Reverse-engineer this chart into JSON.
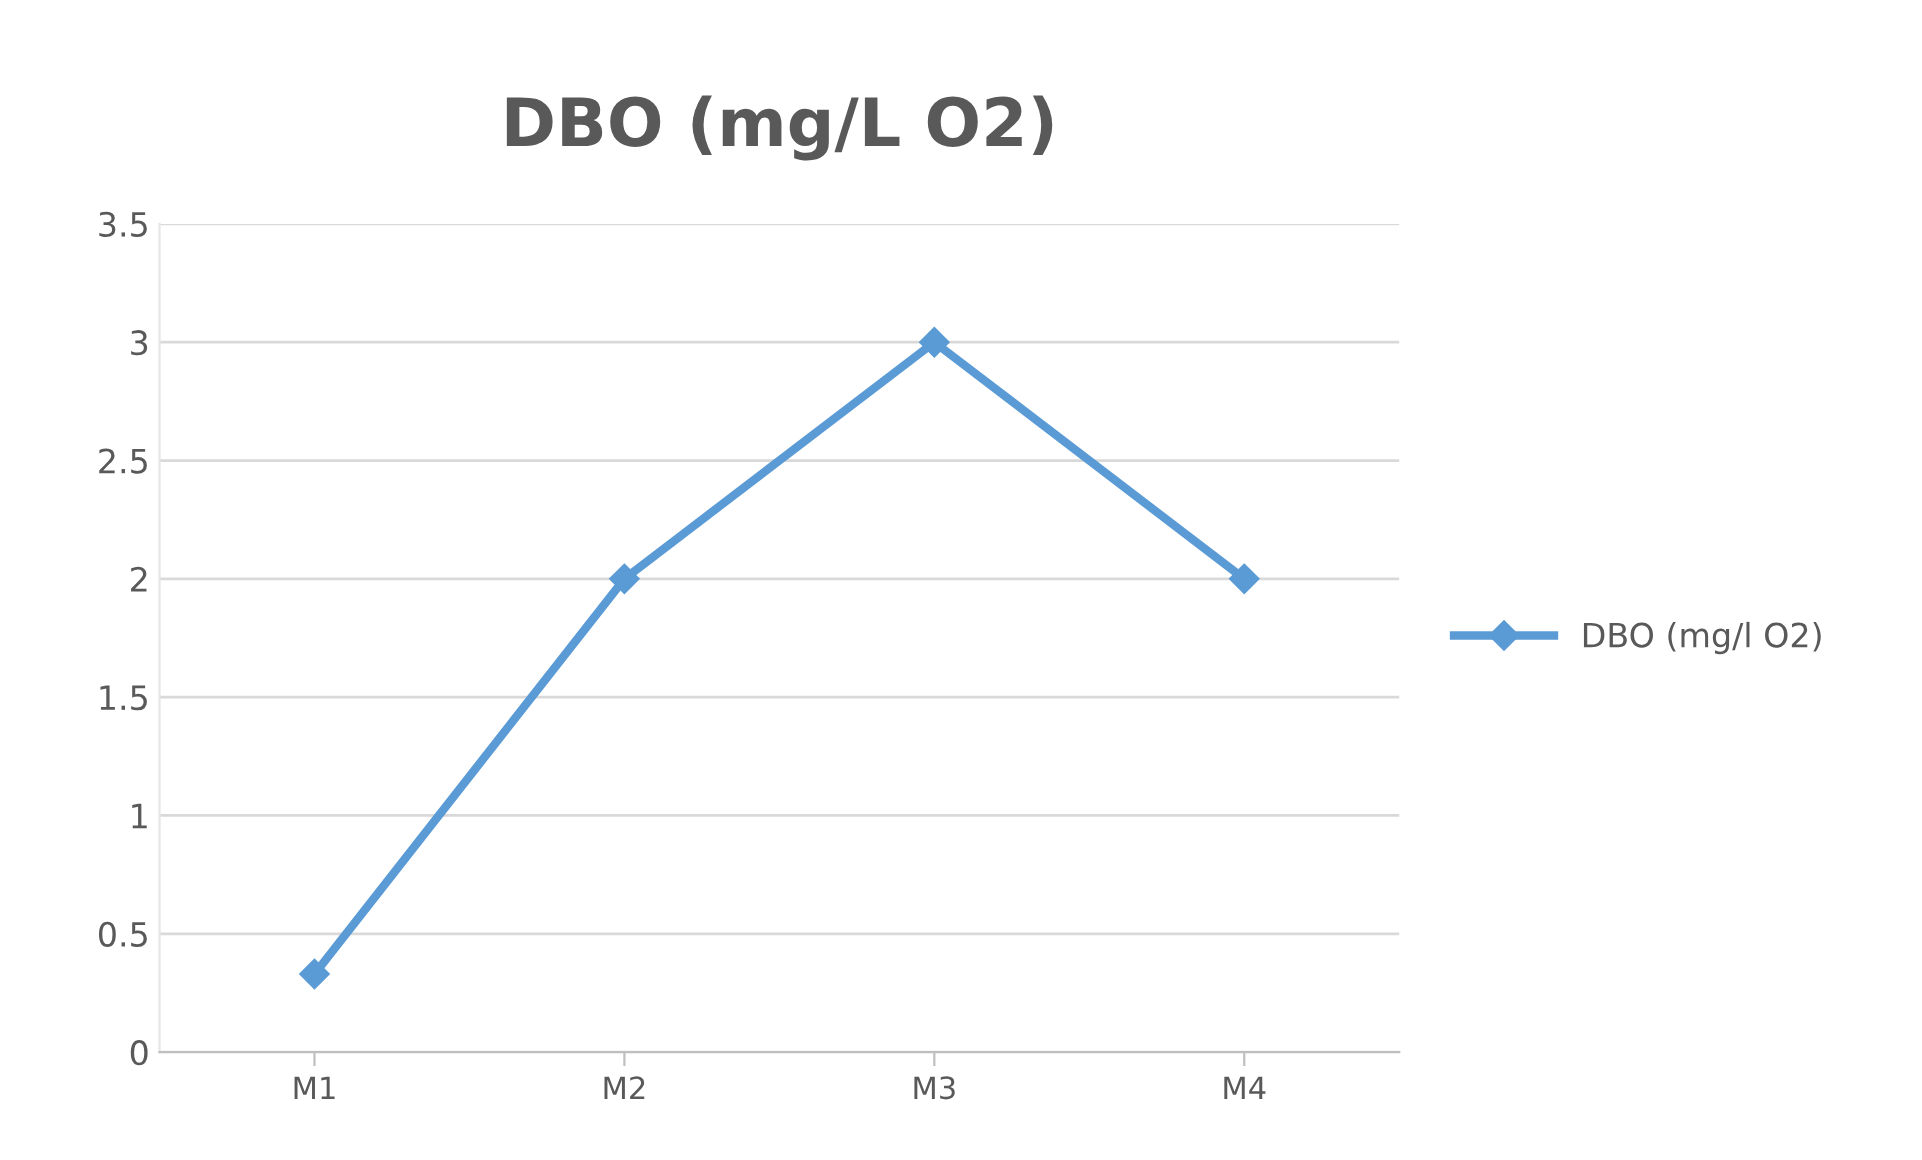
{
  "chart_data": {
    "type": "line",
    "title": "DBO (mg/L O2)",
    "categories": [
      "M1",
      "M2",
      "M3",
      "M4"
    ],
    "series": [
      {
        "name": "DBO (mg/l O2)",
        "color": "#5b9bd5",
        "values": [
          0.33,
          2,
          3,
          2
        ]
      }
    ],
    "ylim": [
      0,
      3.5
    ],
    "yticks": [
      0,
      0.5,
      1,
      1.5,
      2,
      2.5,
      3,
      3.5
    ],
    "grid": "y",
    "legend": "right",
    "marker": "diamond",
    "line_style": "solid"
  }
}
